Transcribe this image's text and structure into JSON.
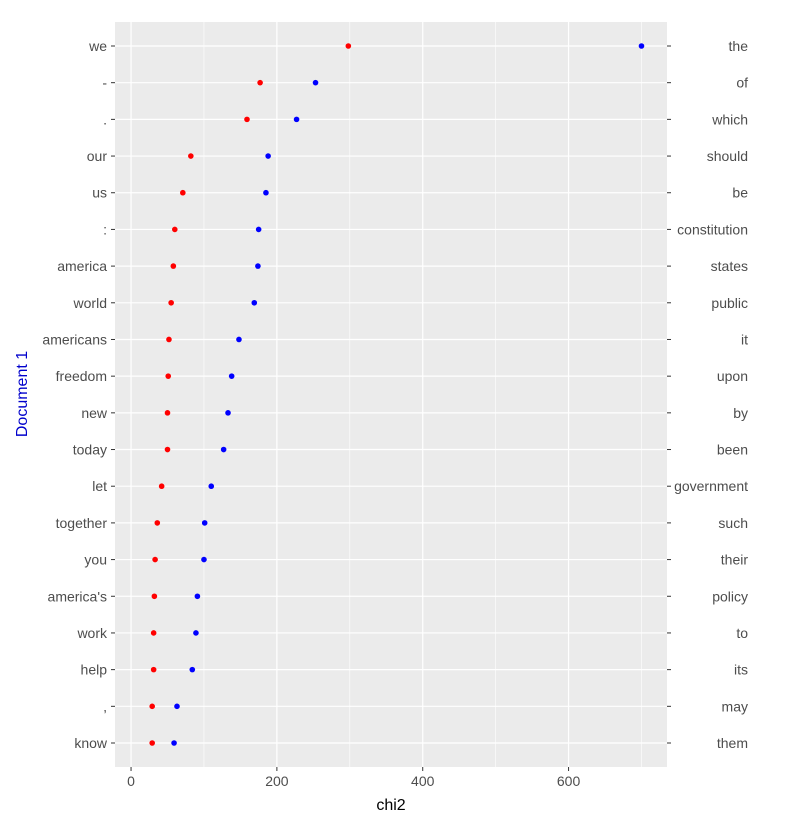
{
  "chart_data": {
    "type": "scatter",
    "xlabel": "chi2",
    "ylabel": "Document 1",
    "xlim": [
      -22,
      735
    ],
    "x_ticks": [
      0,
      200,
      400,
      600
    ],
    "x_tick_labels": [
      "0",
      "200",
      "400",
      "600"
    ],
    "grid": true,
    "legend": "none",
    "colors": {
      "target": "#ff0000",
      "reference": "#0000ff",
      "ylabel": "#0000cc",
      "panel": "#ebebeb",
      "grid": "#ffffff"
    },
    "rows": [
      {
        "left": "we",
        "right": "the",
        "red": 298,
        "blue": 700
      },
      {
        "left": "-",
        "right": "of",
        "red": 177,
        "blue": 253
      },
      {
        "left": ".",
        "right": "which",
        "red": 159,
        "blue": 227
      },
      {
        "left": "our",
        "right": "should",
        "red": 82,
        "blue": 188
      },
      {
        "left": "us",
        "right": "be",
        "red": 71,
        "blue": 185
      },
      {
        "left": ":",
        "right": "constitution",
        "red": 60,
        "blue": 175
      },
      {
        "left": "america",
        "right": "states",
        "red": 58,
        "blue": 174
      },
      {
        "left": "world",
        "right": "public",
        "red": 55,
        "blue": 169
      },
      {
        "left": "americans",
        "right": "it",
        "red": 52,
        "blue": 148
      },
      {
        "left": "freedom",
        "right": "upon",
        "red": 51,
        "blue": 138
      },
      {
        "left": "new",
        "right": "by",
        "red": 50,
        "blue": 133
      },
      {
        "left": "today",
        "right": "been",
        "red": 50,
        "blue": 127
      },
      {
        "left": "let",
        "right": "government",
        "red": 42,
        "blue": 110
      },
      {
        "left": "together",
        "right": "such",
        "red": 36,
        "blue": 101
      },
      {
        "left": "you",
        "right": "their",
        "red": 33,
        "blue": 100
      },
      {
        "left": "america's",
        "right": "policy",
        "red": 32,
        "blue": 91
      },
      {
        "left": "work",
        "right": "to",
        "red": 31,
        "blue": 89
      },
      {
        "left": "help",
        "right": "its",
        "red": 31,
        "blue": 84
      },
      {
        "left": ",",
        "right": "may",
        "red": 29,
        "blue": 63
      },
      {
        "left": "know",
        "right": "them",
        "red": 29,
        "blue": 59
      }
    ]
  }
}
